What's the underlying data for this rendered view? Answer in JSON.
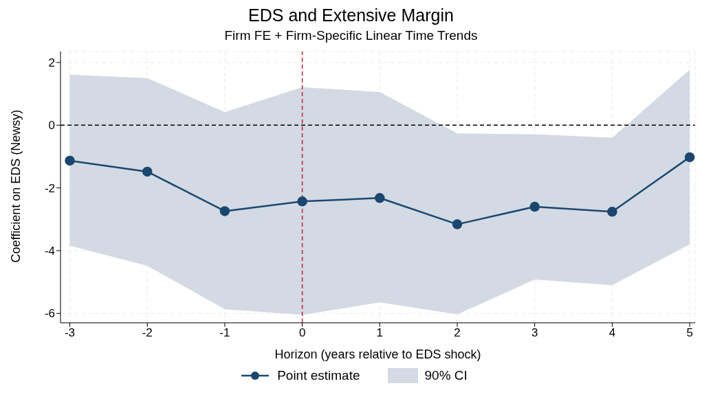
{
  "chart_data": {
    "type": "line",
    "title": "EDS and Extensive Margin",
    "subtitle": "Firm FE + Firm-Specific Linear Time Trends",
    "xlabel": "Horizon (years relative to EDS shock)",
    "ylabel": "Coefficient on EDS (Newsy)",
    "x": [
      -3,
      -2,
      -1,
      0,
      1,
      2,
      3,
      4,
      5
    ],
    "series": [
      {
        "name": "Point estimate",
        "color": "#1a476f",
        "values": [
          -1.13,
          -1.48,
          -2.74,
          -2.43,
          -2.32,
          -3.16,
          -2.6,
          -2.76,
          -1.02
        ],
        "lower": [
          -3.84,
          -4.48,
          -5.87,
          -6.05,
          -5.65,
          -6.03,
          -4.92,
          -5.1,
          -3.8
        ],
        "upper": [
          1.61,
          1.5,
          0.42,
          1.21,
          1.06,
          -0.26,
          -0.29,
          -0.4,
          1.77
        ]
      }
    ],
    "annotations": [
      "90% CI"
    ],
    "xlim": [
      -3.12,
      5.07
    ],
    "ylim": [
      -6.3,
      2.35
    ],
    "xticks": [
      -3,
      -2,
      -1,
      0,
      1,
      2,
      3,
      4,
      5
    ],
    "yticks": [
      -6,
      -4,
      -2,
      0,
      2
    ],
    "ref_lines": [
      {
        "axis": "y",
        "value": 0,
        "color": "#000000",
        "line_style": "dashed"
      },
      {
        "axis": "x",
        "value": 0,
        "color": "#c41e3a",
        "line_style": "dashed"
      }
    ],
    "grid": true,
    "legend": "bottom",
    "marker": "circle",
    "line_style": "solid"
  }
}
